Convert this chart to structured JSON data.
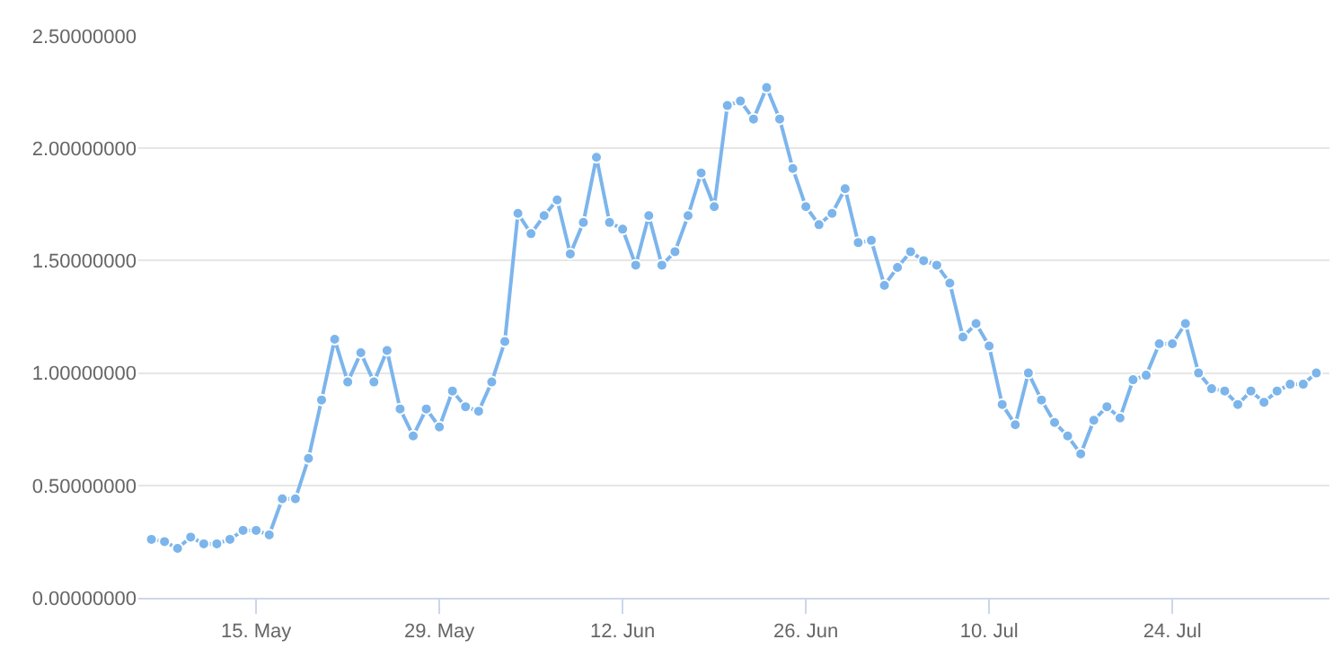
{
  "chart_data": {
    "type": "line",
    "x": [
      "--05-07",
      "--05-08",
      "--05-09",
      "--05-10",
      "--05-11",
      "--05-12",
      "--05-13",
      "--05-14",
      "--05-15",
      "--05-16",
      "--05-17",
      "--05-18",
      "--05-19",
      "--05-20",
      "--05-21",
      "--05-22",
      "--05-23",
      "--05-24",
      "--05-25",
      "--05-26",
      "--05-27",
      "--05-28",
      "--05-29",
      "--05-30",
      "--05-31",
      "--06-01",
      "--06-02",
      "--06-03",
      "--06-04",
      "--06-05",
      "--06-06",
      "--06-07",
      "--06-08",
      "--06-09",
      "--06-10",
      "--06-11",
      "--06-12",
      "--06-13",
      "--06-14",
      "--06-15",
      "--06-16",
      "--06-17",
      "--06-18",
      "--06-19",
      "--06-20",
      "--06-21",
      "--06-22",
      "--06-23",
      "--06-24",
      "--06-25",
      "--06-26",
      "--06-27",
      "--06-28",
      "--06-29",
      "--06-30",
      "--07-01",
      "--07-02",
      "--07-03",
      "--07-04",
      "--07-05",
      "--07-06",
      "--07-07",
      "--07-08",
      "--07-09",
      "--07-10",
      "--07-11",
      "--07-12",
      "--07-13",
      "--07-14",
      "--07-15",
      "--07-16",
      "--07-17",
      "--07-18",
      "--07-19",
      "--07-20",
      "--07-21",
      "--07-22",
      "--07-23",
      "--07-24",
      "--07-25",
      "--07-26",
      "--07-27",
      "--07-28",
      "--07-29",
      "--07-30",
      "--07-31",
      "--08-01",
      "--08-02",
      "--08-03",
      "--08-04"
    ],
    "series": [
      {
        "color": "#7cb5ec",
        "values": [
          0.26,
          0.25,
          0.22,
          0.27,
          0.24,
          0.24,
          0.26,
          0.3,
          0.3,
          0.28,
          0.44,
          0.44,
          0.62,
          0.88,
          1.15,
          0.96,
          1.09,
          0.96,
          1.1,
          0.84,
          0.72,
          0.84,
          0.76,
          0.92,
          0.85,
          0.83,
          0.96,
          1.14,
          1.71,
          1.62,
          1.7,
          1.77,
          1.53,
          1.67,
          1.96,
          1.67,
          1.64,
          1.48,
          1.7,
          1.48,
          1.54,
          1.7,
          1.89,
          1.74,
          2.19,
          2.21,
          2.13,
          2.27,
          2.13,
          1.91,
          1.74,
          1.66,
          1.71,
          1.82,
          1.58,
          1.59,
          1.39,
          1.47,
          1.54,
          1.5,
          1.48,
          1.4,
          1.16,
          1.22,
          1.12,
          0.86,
          0.77,
          1.0,
          0.88,
          0.78,
          0.72,
          0.64,
          0.79,
          0.85,
          0.8,
          0.97,
          0.99,
          1.13,
          1.13,
          1.22,
          1.0,
          0.93,
          0.92,
          0.86,
          0.92,
          0.87,
          0.92,
          0.95,
          0.95,
          1.0
        ]
      }
    ],
    "xlim": [
      "--05-06",
      "--08-05"
    ],
    "xticks": [
      {
        "value": "--05-15",
        "label": "15. May"
      },
      {
        "value": "--05-29",
        "label": "29. May"
      },
      {
        "value": "--06-12",
        "label": "12. Jun"
      },
      {
        "value": "--06-26",
        "label": "26. Jun"
      },
      {
        "value": "--07-10",
        "label": "10. Jul"
      },
      {
        "value": "--07-24",
        "label": "24. Jul"
      }
    ],
    "ylim": [
      0,
      2.5
    ],
    "yticks": [
      {
        "value": 0,
        "label": "0.00000000"
      },
      {
        "value": 0.5,
        "label": "0.50000000"
      },
      {
        "value": 1,
        "label": "1.00000000"
      },
      {
        "value": 1.5,
        "label": "1.50000000"
      },
      {
        "value": 2,
        "label": "2.00000000"
      },
      {
        "value": 2.5,
        "label": "2.50000000"
      }
    ],
    "grid": "y",
    "marker": "circle",
    "line_style": "solid"
  }
}
